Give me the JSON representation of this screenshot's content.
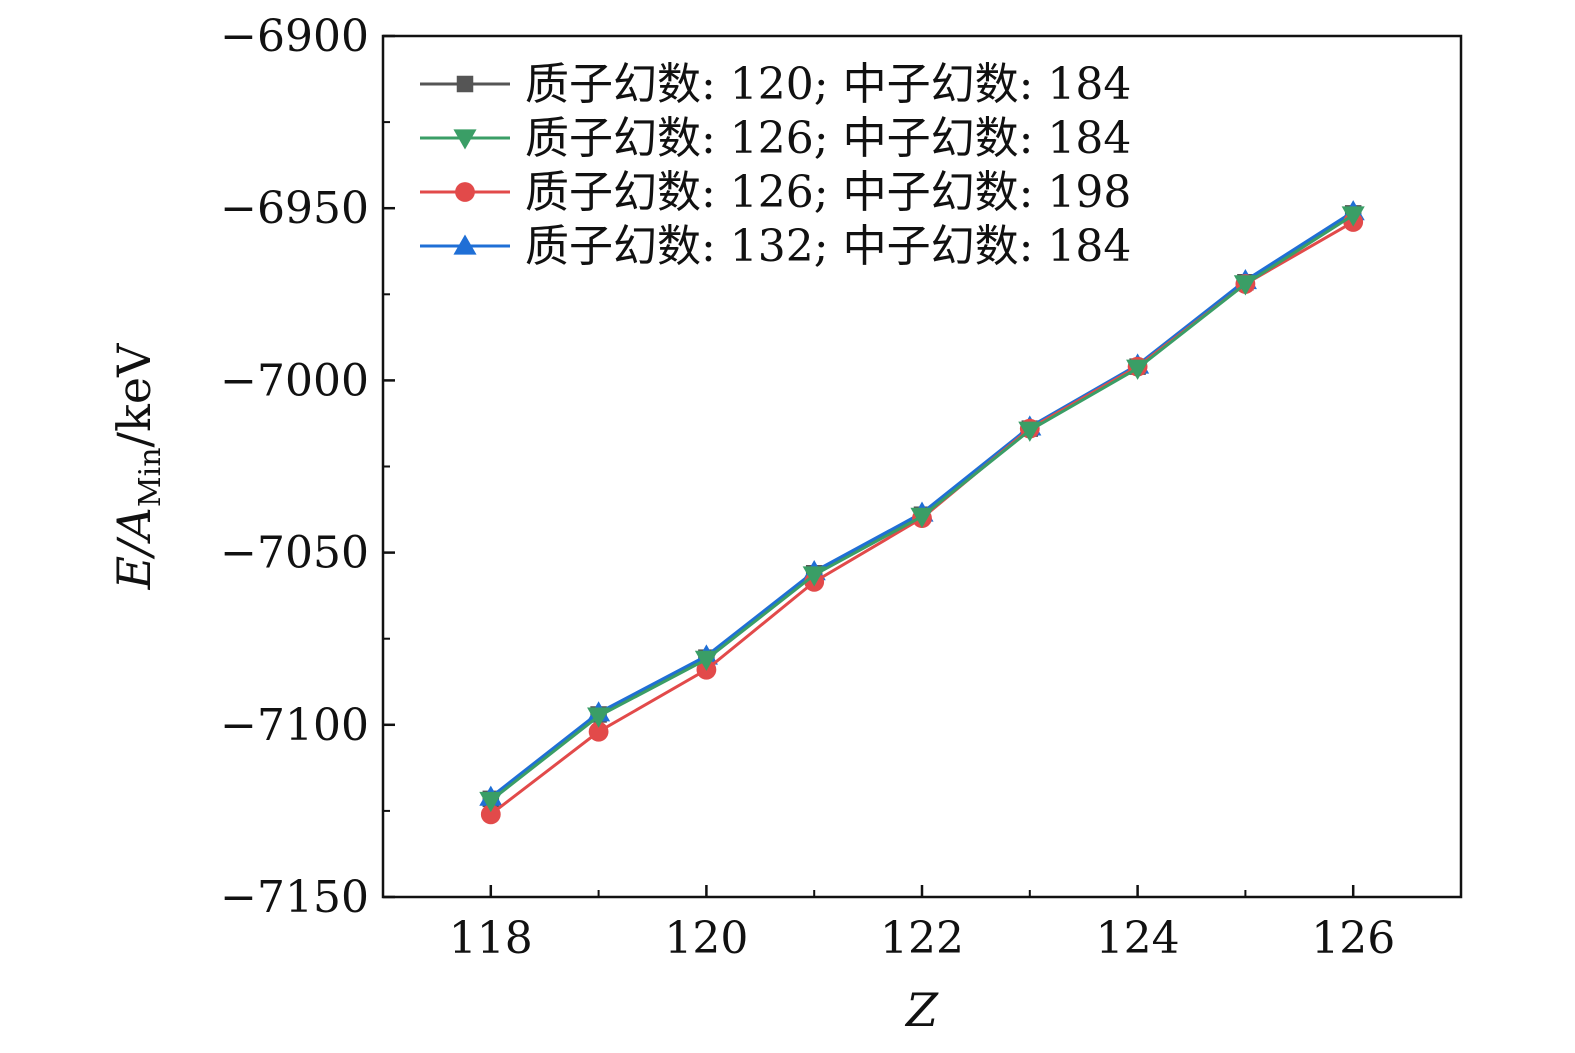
{
  "chart_data": {
    "type": "line",
    "xlabel": "Z",
    "ylabel": {
      "prefix": "E/",
      "main": "A",
      "subscript": "Min",
      "suffix": "/keV"
    },
    "xlim": [
      117,
      127
    ],
    "ylim": [
      -7150,
      -6900
    ],
    "xticks": [
      118,
      120,
      122,
      124,
      126
    ],
    "xtick_labels": [
      "118",
      "120",
      "122",
      "124",
      "126"
    ],
    "yticks": [
      -6900,
      -6950,
      -7000,
      -7050,
      -7100,
      -7150
    ],
    "ytick_labels": [
      "−6900",
      "−6950",
      "−7000",
      "−7050",
      "−7100",
      "−7150"
    ],
    "grid": false,
    "legend_position": "top-left",
    "x": [
      118,
      119,
      120,
      121,
      122,
      123,
      124,
      125,
      126
    ],
    "series": [
      {
        "name": "质子幻数: 120; 中子幻数: 184",
        "color": "#555555",
        "marker": "square",
        "values": [
          -7121.5,
          -7097.0,
          -7080.5,
          -7056.0,
          -7039.0,
          -7014.0,
          -6996.0,
          -6971.5,
          -6951.5
        ]
      },
      {
        "name": "质子幻数: 126; 中子幻数: 184",
        "color": "#3a9e66",
        "marker": "triangle-down",
        "values": [
          -7122.0,
          -7097.5,
          -7081.0,
          -7056.5,
          -7039.5,
          -7014.5,
          -6996.5,
          -6972.0,
          -6952.0
        ]
      },
      {
        "name": "质子幻数: 126; 中子幻数: 198",
        "color": "#e24a4a",
        "marker": "circle",
        "values": [
          -7126.0,
          -7102.0,
          -7084.0,
          -7058.5,
          -7040.0,
          -7014.0,
          -6996.0,
          -6972.0,
          -6954.0
        ]
      },
      {
        "name": "质子幻数: 132; 中子幻数: 184",
        "color": "#1f6fd6",
        "marker": "triangle-up",
        "values": [
          -7121.0,
          -7096.5,
          -7080.0,
          -7055.5,
          -7038.5,
          -7013.5,
          -6995.5,
          -6971.0,
          -6951.0
        ]
      }
    ]
  }
}
